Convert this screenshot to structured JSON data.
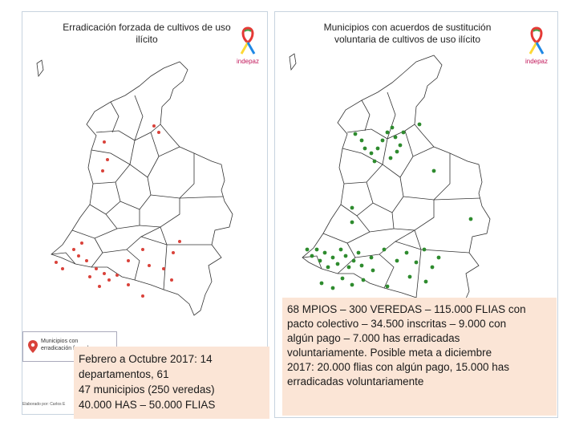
{
  "left_panel": {
    "title_line1": "Erradicación forzada de cultivos de uso",
    "title_line2": "ilícito",
    "logo_text": "indepaz",
    "legend_label_line1": "Municipios con",
    "legend_label_line2": "erradicación forzada",
    "credit": "Elaborado por: Carlos E",
    "marker_color": "#d9423a",
    "note_lines": [
      "Febrero a Octubre 2017: 14",
      "departamentos, 61",
      "47 municipios (250 veredas)",
      "40.000 HAS – 50.000 FLIAS"
    ]
  },
  "right_panel": {
    "title_line1": "Municipios con acuerdos de sustitución",
    "title_line2": "voluntaria de cultivos de uso ilícito",
    "logo_text": "indepaz",
    "marker_color": "#2e8b2e",
    "note_lines": [
      "68 MPIOS – 300 VEREDAS – 115.000 FLIAS con",
      "pacto colectivo – 34.500 inscritas – 9.000 con",
      "algún pago – 7.000 has erradicadas",
      "voluntariamente. Posible meta a diciembre",
      "2017: 20.000 flias con algún pago, 15.000  has",
      "erradicadas voluntariamente"
    ]
  },
  "colors": {
    "note_bg": "#fbe5d6",
    "border": "#c7d3df",
    "map_outline": "#333333"
  }
}
